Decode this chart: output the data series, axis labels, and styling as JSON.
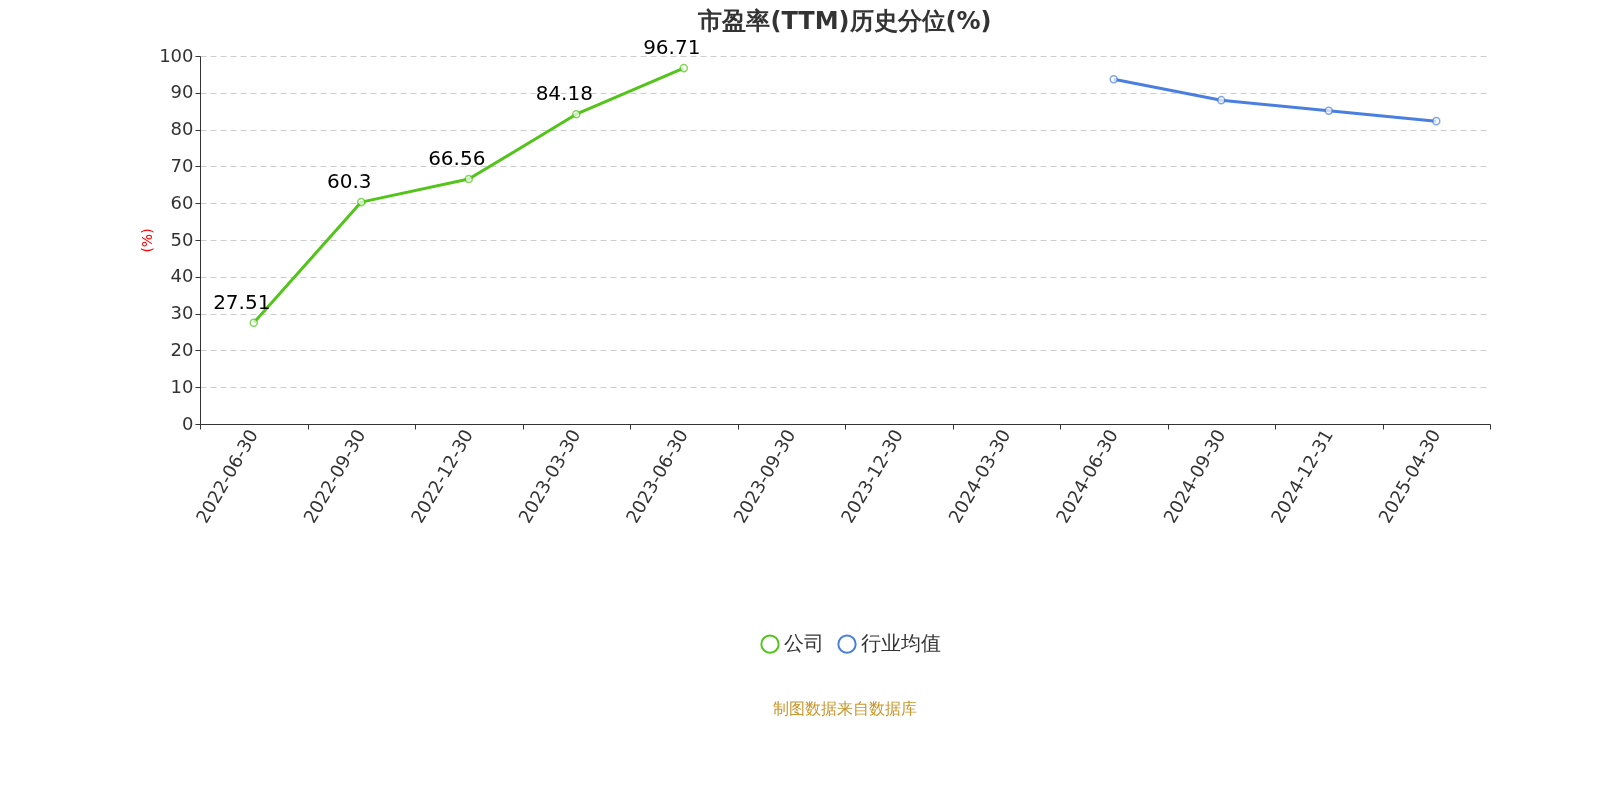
{
  "chart_data": {
    "type": "line",
    "title": "市盈率(TTM)历史分位(%)",
    "ylabel": "(%)",
    "categories": [
      "2022-06-30",
      "2022-09-30",
      "2022-12-30",
      "2023-03-30",
      "2023-06-30",
      "2023-09-30",
      "2023-12-30",
      "2024-03-30",
      "2024-06-30",
      "2024-09-30",
      "2024-12-31",
      "2025-04-30"
    ],
    "series": [
      {
        "name": "公司",
        "color": "#52c41a",
        "values": [
          27.51,
          60.3,
          66.56,
          84.18,
          96.71,
          null,
          null,
          null,
          null,
          null,
          null,
          null
        ],
        "value_labels": [
          "27.51",
          "60.3",
          "66.56",
          "84.18",
          "96.71",
          null,
          null,
          null,
          null,
          null,
          null,
          null
        ]
      },
      {
        "name": "行业均值",
        "color": "#4a7fdf",
        "values": [
          null,
          null,
          null,
          null,
          null,
          null,
          null,
          null,
          93.7,
          88.0,
          85.1,
          82.3
        ]
      }
    ],
    "ylim": [
      0,
      100
    ],
    "yticks": [
      0,
      10,
      20,
      30,
      40,
      50,
      60,
      70,
      80,
      90,
      100
    ],
    "grid": "y",
    "legend": "bottom",
    "marker": "circle",
    "line_style": "solid",
    "annotations": [
      "制图数据来自数据库"
    ]
  }
}
